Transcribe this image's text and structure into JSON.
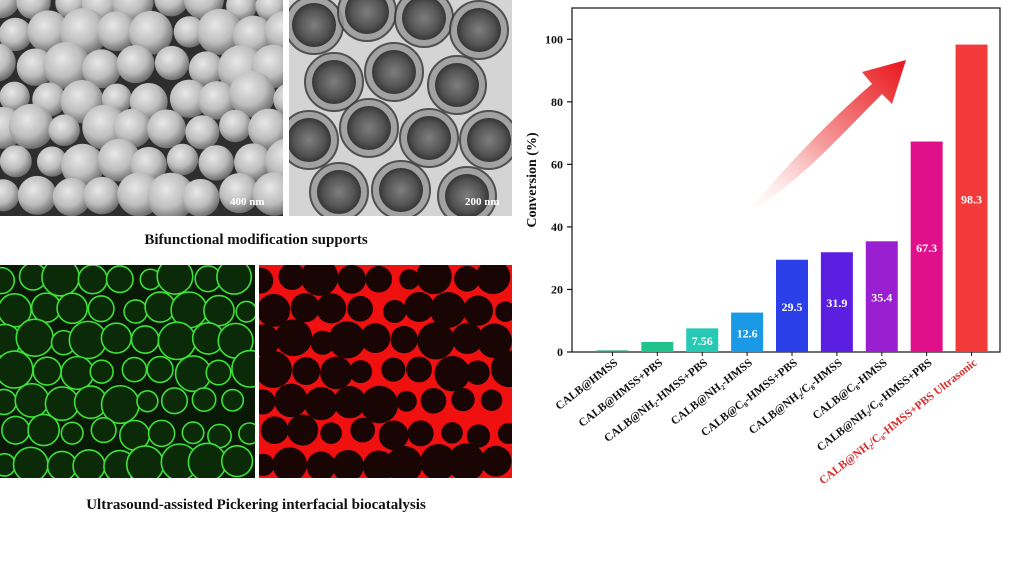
{
  "panels": {
    "sem_scale": "400 nm",
    "tem_scale": "200 nm",
    "caption_top": "Bifunctional modification supports",
    "caption_bottom": "Ultrasound-assisted Pickering interfacial biocatalysis"
  },
  "chart_data": {
    "type": "bar",
    "ylabel": "Conversion (%)",
    "ylim": [
      0,
      110
    ],
    "yticks": [
      0,
      20,
      40,
      60,
      80,
      100
    ],
    "categories": [
      "CALB@HMSS",
      "CALB@HMSS+PBS",
      "CALB@NH₂-HMSS+PBS",
      "CALB@NH₂-HMSS",
      "CALB@C₈-HMSS+PBS",
      "CALB@NH₂/C₈-HMSS",
      "CALB@C₈-HMSS",
      "CALB@NH₂/C₈-HMSS+PBS",
      "CALB@NH₂/C₈-HMSS+PBS Ultrasonic"
    ],
    "values": [
      0.5,
      3.2,
      7.56,
      12.6,
      29.5,
      31.9,
      35.4,
      67.3,
      98.3
    ],
    "data_labels": [
      "",
      "",
      "7.56",
      "12.6",
      "29.5",
      "31.9",
      "35.4",
      "67.3",
      "98.3"
    ],
    "colors": [
      "#1aa37a",
      "#22c28c",
      "#27c9b5",
      "#1a9ae6",
      "#2a3fe8",
      "#5a1fe0",
      "#9a1fd0",
      "#e0108a",
      "#f23a3a"
    ],
    "highlight_label_color": "#d92b2b"
  }
}
